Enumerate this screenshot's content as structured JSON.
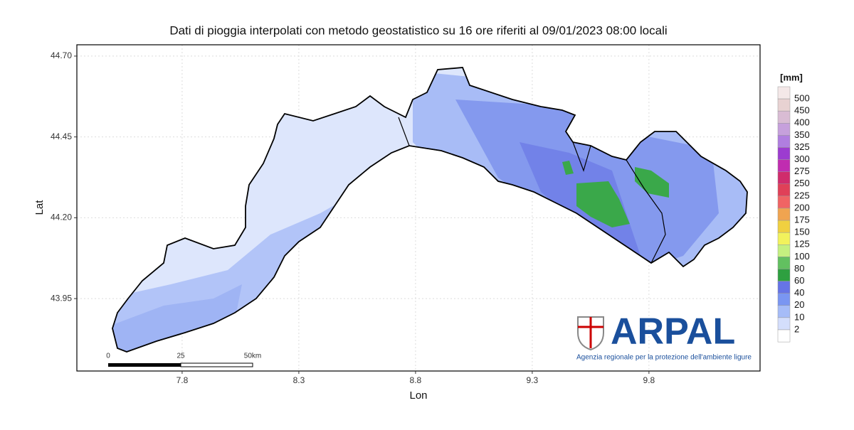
{
  "title": "Dati di pioggia interpolati con metodo geostatistico su 16 ore riferiti al 09/01/2023 08:00 locali",
  "map": {
    "x_label": "Lon",
    "y_label": "Lat",
    "xlim": [
      7.349,
      10.276
    ],
    "ylim": [
      43.726,
      44.735
    ],
    "xticks": [
      7.8,
      8.3,
      8.8,
      9.3,
      9.8
    ],
    "yticks": [
      {
        "value": 44.7,
        "label": "44.70"
      },
      {
        "value": 44.45,
        "label": "44.45"
      },
      {
        "value": 44.2,
        "label": "44.20"
      },
      43.95
    ],
    "grid": true
  },
  "legend": {
    "title": "[mm]",
    "labels": [
      500,
      450,
      400,
      350,
      325,
      300,
      275,
      250,
      225,
      200,
      175,
      150,
      125,
      100,
      80,
      60,
      40,
      20,
      10,
      2
    ],
    "colors": [
      "#f4e8e8",
      "#e8d2d2",
      "#d9bcd4",
      "#c6a0dc",
      "#b07ee0",
      "#9c3cd0",
      "#c02cb0",
      "#d02c6c",
      "#e04058",
      "#f06464",
      "#f0a450",
      "#f0d040",
      "#f2f25c",
      "#c4f080",
      "#62c060",
      "#2ea040",
      "#6674e6",
      "#7a96f2",
      "#a6bcf8",
      "#d4defc",
      "#ffffff"
    ]
  },
  "scale_bar": {
    "labels": [
      "0",
      "25",
      "50km"
    ]
  },
  "logo": {
    "name": "ARPAL",
    "subtitle": "Agenzia regionale per la protezione dell'ambiente ligure"
  }
}
